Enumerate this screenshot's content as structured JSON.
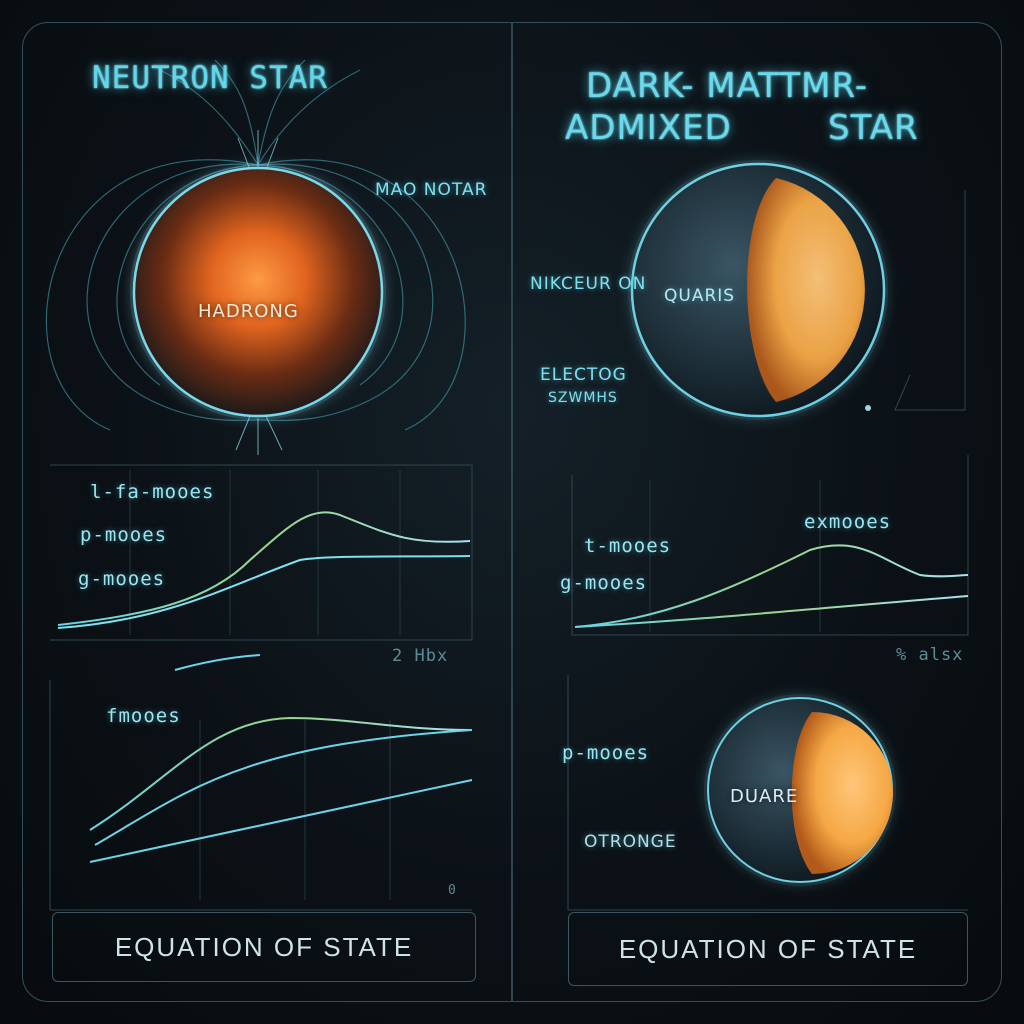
{
  "left": {
    "title": "NEUTRON STAR",
    "magnetar_label": "MAO NOTAR",
    "core_label": "HADRONG",
    "plot1": {
      "modes": [
        "l-fa-mooes",
        "p-mooes",
        "g-mooes"
      ],
      "axis_note": "2 Hbx"
    },
    "plot2": {
      "modes": [
        "fmooes"
      ],
      "axis_note": "0"
    },
    "eos_label": "EQUATION OF STATE"
  },
  "right": {
    "title_line1": "DARK- MATTMR-",
    "title_line2": "ADMIXED",
    "title_line3": "STAR",
    "labels": {
      "nucleon": "NIKCEUR ON",
      "quark": "QUARIS",
      "electron_line1": "ELECTOG",
      "electron_line2": "SZWMHS"
    },
    "plot1": {
      "modes": [
        "exmooes",
        "t-mooes",
        "g-mooes"
      ],
      "axis_note": "% alsx"
    },
    "lower": {
      "modes": [
        "p-mooes"
      ],
      "core_label": "DUARE",
      "strange_label": "OTRONGE"
    },
    "eos_label": "EQUATION OF STATE"
  },
  "colors": {
    "accent": "#62d6ea",
    "core_hot": "#f07a2a",
    "dm_core": "#f5a845",
    "frame": "#35505a"
  }
}
